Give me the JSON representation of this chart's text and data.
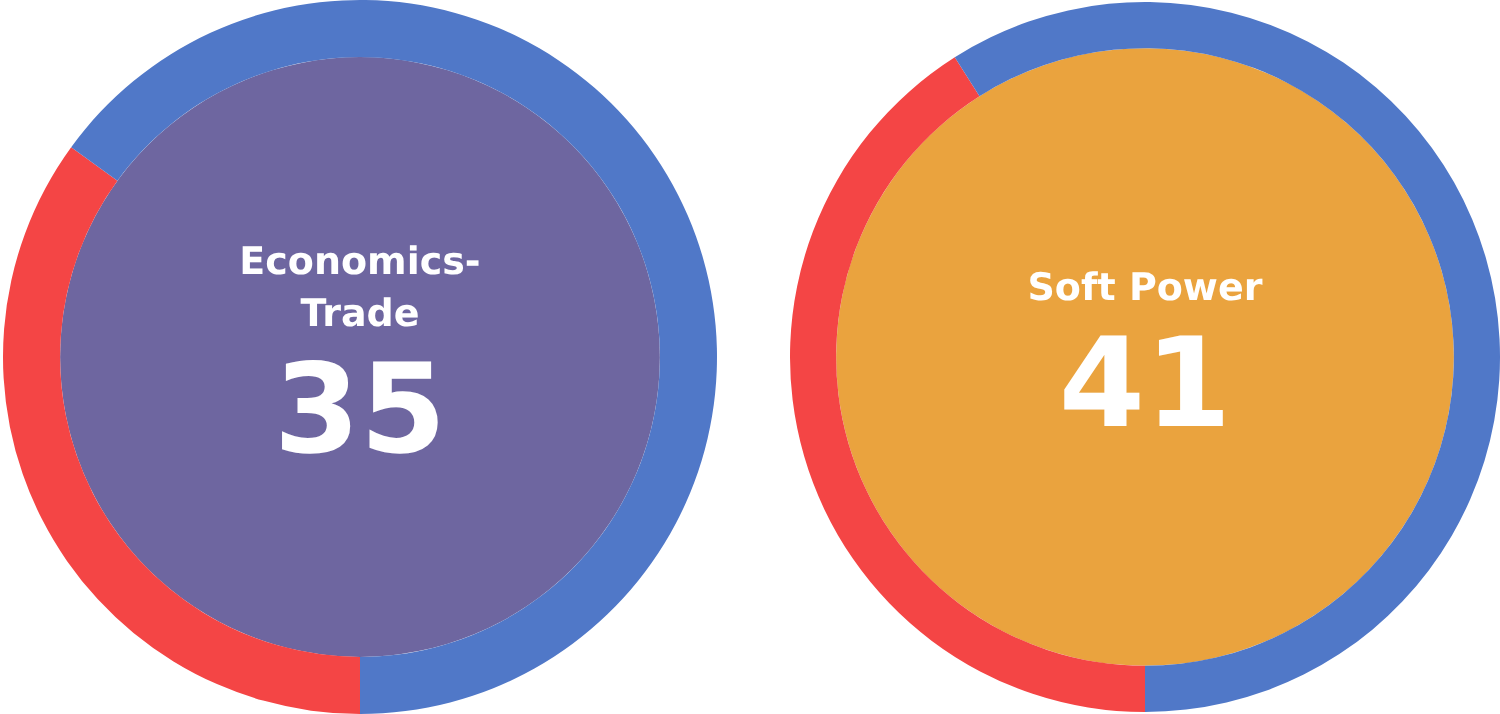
{
  "chart_data": [
    {
      "type": "donut",
      "title": "Economics-Trade",
      "categories": [
        null,
        null
      ],
      "values": [
        35,
        65
      ],
      "colors": [
        "#f44545",
        "#5078c8"
      ],
      "value_labels": [
        "35",
        null
      ]
    },
    {
      "type": "donut",
      "title": "Soft Power",
      "categories": [
        null,
        null
      ],
      "values": [
        41,
        59
      ],
      "colors": [
        "#f44545",
        "#5078c8"
      ],
      "value_labels": [
        "41",
        null
      ]
    }
  ]
}
